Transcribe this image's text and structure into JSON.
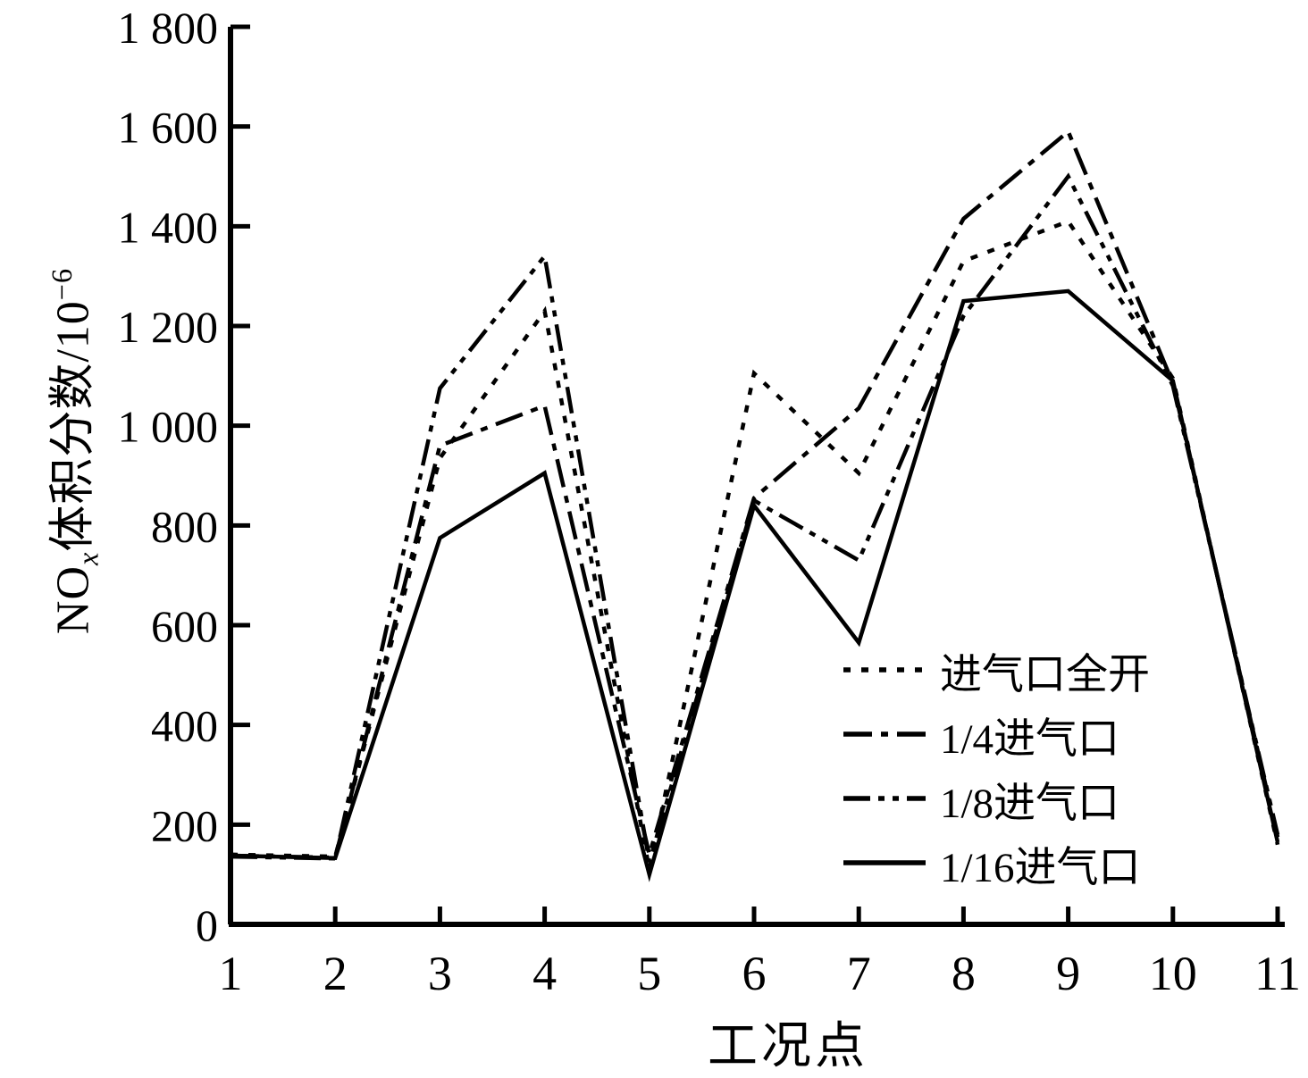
{
  "chart_data": {
    "type": "line",
    "title": "",
    "xlabel": "工况点",
    "ylabel_text": "NOx体积分数/10-6",
    "ylabel_parts": {
      "prefix": "NO",
      "subscript": "x",
      "middle": "体积分数/10",
      "superscript": "−6"
    },
    "x": [
      1,
      2,
      3,
      4,
      5,
      6,
      7,
      8,
      9,
      10,
      11
    ],
    "x_tick_labels": [
      "1",
      "2",
      "3",
      "4",
      "5",
      "6",
      "7",
      "8",
      "9",
      "10",
      "11"
    ],
    "xlim": [
      1,
      11
    ],
    "y_ticks": [
      0,
      200,
      400,
      600,
      800,
      1000,
      1200,
      1400,
      1600,
      1800
    ],
    "y_tick_labels": [
      "0",
      "200",
      "400",
      "600",
      "800",
      "1 000",
      "1 200",
      "1 400",
      "1 600",
      "1 800"
    ],
    "ylim": [
      0,
      1800
    ],
    "grid": false,
    "legend_position": "inside-lower-right",
    "line_color": "#000000",
    "background_color": "#ffffff",
    "series": [
      {
        "id": "full-open",
        "name": "进气口全开",
        "style": "dotted",
        "values": [
          140,
          136,
          935,
          1230,
          110,
          1105,
          905,
          1330,
          1410,
          1095,
          160
        ]
      },
      {
        "id": "quarter",
        "name": "1/4进气口",
        "style": "dashdot",
        "values": [
          138,
          134,
          960,
          1040,
          140,
          855,
          1035,
          1415,
          1590,
          1085,
          175
        ]
      },
      {
        "id": "eighth",
        "name": "1/8进气口",
        "style": "dashdotdot",
        "values": [
          136,
          132,
          1075,
          1340,
          125,
          850,
          730,
          1220,
          1500,
          1080,
          180
        ]
      },
      {
        "id": "sixteenth",
        "name": "1/16进气口",
        "style": "solid",
        "values": [
          138,
          133,
          775,
          905,
          100,
          840,
          565,
          1250,
          1270,
          1090,
          165
        ]
      }
    ]
  }
}
